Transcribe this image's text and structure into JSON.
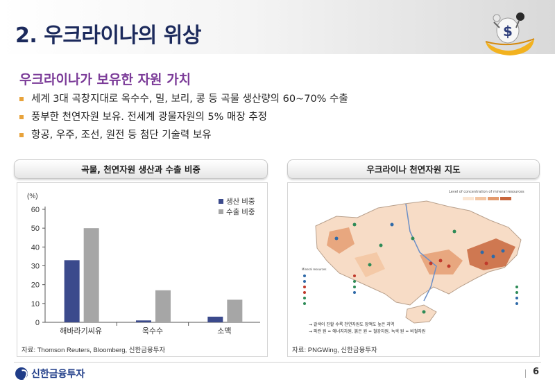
{
  "header": {
    "title": "2. 우크라이나의 위상"
  },
  "subtitle": "우크라이나가 보유한 자원 가치",
  "bullets": [
    "세계 3대 곡창지대로 옥수수, 밀, 보리, 콩 등 곡물 생산량의 60~70% 수출",
    "풍부한 천연자원 보유. 전세계 광물자원의 5% 매장 추정",
    "항공, 우주, 조선, 원전 등 첨단 기술력 보유"
  ],
  "left_panel": {
    "title": "곡물, 천연자원 생산과 수출 비중",
    "source": "자료: Thomson Reuters, Bloomberg, 신한금융투자"
  },
  "right_panel": {
    "title": "우크라이나 천연자원 지도",
    "source": "자료: PNGWing, 신한금융투자",
    "note1": "→ 갈색이 진할 수록 천연자원도 장액도 높은 지역",
    "note2": "→ 파란 원 = 에너지자원, 붉은 원 = 철강자원, 녹색 원 = 비철자원"
  },
  "chart_data": {
    "type": "bar",
    "unit_label": "(%)",
    "categories": [
      "해바라기씨유",
      "옥수수",
      "소맥"
    ],
    "series": [
      {
        "name": "생산 비중",
        "color": "#3b4a8c",
        "values": [
          33,
          1,
          3
        ]
      },
      {
        "name": "수출 비중",
        "color": "#a6a6a6",
        "values": [
          50,
          17,
          12
        ]
      }
    ],
    "ylim": [
      0,
      60
    ],
    "yticks": [
      "0",
      "10",
      "20",
      "30",
      "40",
      "50",
      "60"
    ],
    "legend": "top-right",
    "grid": false
  },
  "footer": {
    "company": "신한금융투자",
    "page": "6"
  },
  "colors": {
    "title": "#1c2a5c",
    "subtitle": "#7b3b98",
    "bullet": "#e8a33b"
  }
}
